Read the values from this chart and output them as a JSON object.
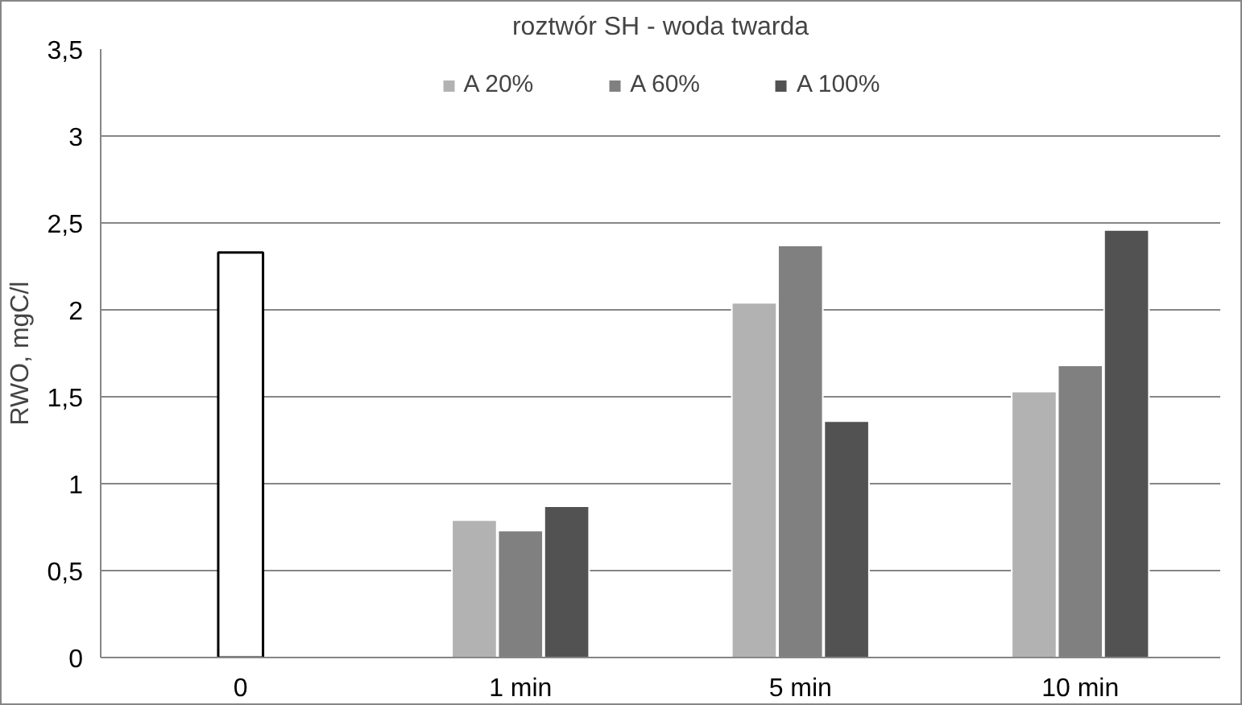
{
  "chart_data": {
    "type": "bar",
    "title": "roztwór SH - woda twarda",
    "ylabel": "RWO, mgC/l",
    "categories": [
      "0",
      "1 min",
      "5 min",
      "10 min"
    ],
    "series": [
      {
        "name": "A 20%",
        "color": "#b2b2b2",
        "values": [
          null,
          0.79,
          2.04,
          1.53
        ]
      },
      {
        "name": "A 60%",
        "color": "#808080",
        "values": [
          null,
          0.73,
          2.37,
          1.68
        ]
      },
      {
        "name": "A 100%",
        "color": "#525252",
        "values": [
          null,
          0.87,
          1.36,
          2.46
        ]
      },
      {
        "color": "#ffffff",
        "values": [
          2.33,
          null,
          null,
          null
        ]
      }
    ],
    "ylim": [
      0,
      3.5
    ],
    "yticks": [
      {
        "value": 0,
        "label": "0"
      },
      {
        "value": 0.5,
        "label": "0,5"
      },
      {
        "value": 1,
        "label": "1"
      },
      {
        "value": 1.5,
        "label": "1,5"
      },
      {
        "value": 2,
        "label": "2"
      },
      {
        "value": 2.5,
        "label": "2,5"
      },
      {
        "value": 3,
        "label": "3"
      },
      {
        "value": 3.5,
        "label": "3,5"
      }
    ],
    "grid": "y",
    "legend": "top"
  }
}
